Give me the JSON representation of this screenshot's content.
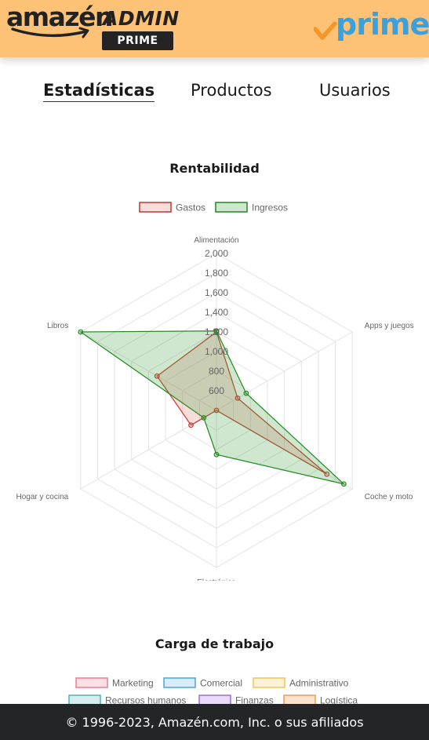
{
  "header": {
    "logo_word": "amazén",
    "logo_admin": "ADMIN",
    "logo_badge": "PRIME",
    "prime_text": "prime",
    "bg_color": "#fdc276"
  },
  "tabs": [
    {
      "label": "Estadísticas",
      "active": true
    },
    {
      "label": "Productos",
      "active": false
    },
    {
      "label": "Usuarios",
      "active": false
    }
  ],
  "chart_data": [
    {
      "type": "radar",
      "title": "Rentabilidad",
      "categories": [
        "Alimentación",
        "Apps y juegos",
        "Coche y moto",
        "Electrónica",
        "Hogar y cocina",
        "Libros"
      ],
      "r_ticks": [
        "600",
        "800",
        "1,000",
        "1,200",
        "1,400",
        "1,600",
        "1,800",
        "2,000"
      ],
      "rlim": [
        400,
        2000
      ],
      "grid": true,
      "legend_position": "top",
      "series": [
        {
          "name": "Gastos",
          "values": [
            1200,
            650,
            1700,
            400,
            700,
            1100
          ],
          "color": "#c0392b",
          "fill": "rgba(230,120,110,0.25)"
        },
        {
          "name": "Ingresos",
          "values": [
            1210,
            750,
            1900,
            850,
            550,
            2000
          ],
          "color": "#1f8a1f",
          "fill": "rgba(60,160,60,0.25)"
        }
      ]
    },
    {
      "type": "radar",
      "title": "Carga de trabajo",
      "legend_position": "top",
      "series": [
        {
          "name": "Marketing",
          "color": "#f07a92",
          "fill": "#fde0e6"
        },
        {
          "name": "Comercial",
          "color": "#4aa6e0",
          "fill": "#d9ecfa"
        },
        {
          "name": "Administrativo",
          "color": "#f2c35a",
          "fill": "#fdf1d6"
        },
        {
          "name": "Recursos humanos",
          "color": "#4db3b3",
          "fill": "#d6eeee"
        },
        {
          "name": "Finanzas",
          "color": "#9a6fe0",
          "fill": "#e8dcfa"
        },
        {
          "name": "Logística",
          "color": "#f29a52",
          "fill": "#fde3cf"
        }
      ]
    }
  ],
  "footer": {
    "text": "© 1996-2023, Amazén.com, Inc. o sus afiliados"
  }
}
